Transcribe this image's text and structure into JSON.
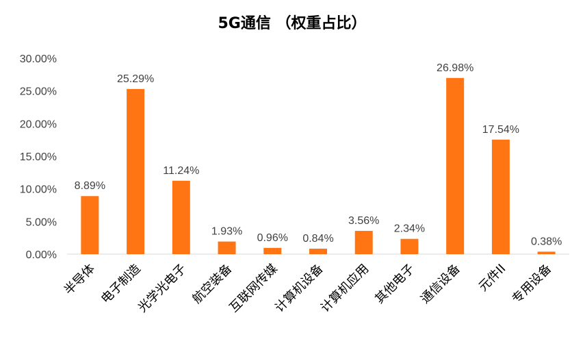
{
  "chart_data": {
    "type": "bar",
    "title": "5G通信 （权重占比）",
    "categories": [
      "半导体",
      "电子制造",
      "光学光电子",
      "航空装备",
      "互联网传媒",
      "计算机设备",
      "计算机应用",
      "其他电子",
      "通信设备",
      "元件II",
      "专用设备"
    ],
    "values": [
      8.89,
      25.29,
      11.24,
      1.93,
      0.96,
      0.84,
      3.56,
      2.34,
      26.98,
      17.54,
      0.38
    ],
    "data_labels": [
      "8.89%",
      "25.29%",
      "11.24%",
      "1.93%",
      "0.96%",
      "0.84%",
      "3.56%",
      "2.34%",
      "26.98%",
      "17.54%",
      "0.38%"
    ],
    "ylim": [
      0,
      30
    ],
    "yticks": [
      "0.00%",
      "5.00%",
      "10.00%",
      "15.00%",
      "20.00%",
      "25.00%",
      "30.00%"
    ],
    "xlabel": "",
    "ylabel": "",
    "grid": false,
    "legend": "none",
    "bar_color": "#FF7413",
    "axis_color": "#D9D9D9"
  }
}
